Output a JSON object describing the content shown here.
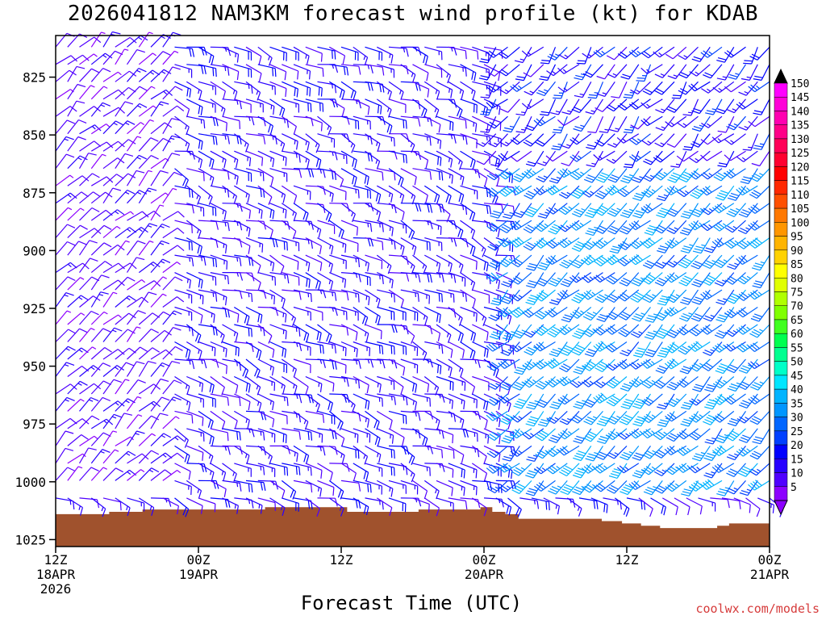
{
  "chart_data": {
    "type": "wind-barb-profile",
    "title": "2026041812 NAM3KM forecast wind profile (kt) for KDAB",
    "xlabel": "Forecast Time (UTC)",
    "ylabel": "",
    "credit": "coolwx.com/models",
    "x_range_hours": [
      0,
      60
    ],
    "x_ticks": [
      {
        "hour": 0,
        "line1": "12Z",
        "line2": "18APR",
        "line3": "2026"
      },
      {
        "hour": 12,
        "line1": "00Z",
        "line2": "19APR",
        "line3": ""
      },
      {
        "hour": 24,
        "line1": "12Z",
        "line2": "",
        "line3": ""
      },
      {
        "hour": 36,
        "line1": "00Z",
        "line2": "20APR",
        "line3": ""
      },
      {
        "hour": 48,
        "line1": "12Z",
        "line2": "",
        "line3": ""
      },
      {
        "hour": 60,
        "line1": "00Z",
        "line2": "21APR",
        "line3": ""
      }
    ],
    "y_range_hPa": [
      807,
      1028
    ],
    "y_ticks": [
      "825",
      "850",
      "875",
      "900",
      "925",
      "950",
      "975",
      "1000",
      "1025"
    ],
    "y_tick_values": [
      825,
      850,
      875,
      900,
      925,
      950,
      975,
      1000,
      1025
    ],
    "colorbar": {
      "labels": [
        "150",
        "145",
        "140",
        "135",
        "130",
        "125",
        "120",
        "115",
        "110",
        "105",
        "100",
        "95",
        "90",
        "85",
        "80",
        "75",
        "70",
        "65",
        "60",
        "55",
        "50",
        "45",
        "40",
        "35",
        "30",
        "25",
        "20",
        "15",
        "10",
        "5"
      ],
      "colors": [
        "#ff00ff",
        "#ff00d8",
        "#ff00b0",
        "#ff0088",
        "#ff0058",
        "#ff0030",
        "#ff0000",
        "#ff2800",
        "#ff5000",
        "#ff7800",
        "#ff9600",
        "#ffb400",
        "#ffd200",
        "#ffff00",
        "#e0ff00",
        "#b0ff00",
        "#80ff00",
        "#40ff20",
        "#00ff50",
        "#00ff90",
        "#00ffc8",
        "#00e6ff",
        "#00b4ff",
        "#0096ff",
        "#0066ff",
        "#0040ff",
        "#0000ff",
        "#2800ff",
        "#5000ff",
        "#8c00ff"
      ],
      "top_cap_color": "#000000",
      "bottom_cap_color": "#8c00ff"
    },
    "terrain_color": "#a0522d",
    "terrain_surface_hPa": [
      {
        "hour": 0,
        "p": 1014
      },
      {
        "hour": 4.5,
        "p": 1013
      },
      {
        "hour": 7.3,
        "p": 1012
      },
      {
        "hour": 17.6,
        "p": 1011
      },
      {
        "hour": 24.5,
        "p": 1013
      },
      {
        "hour": 30.5,
        "p": 1012
      },
      {
        "hour": 35.7,
        "p": 1011
      },
      {
        "hour": 36.7,
        "p": 1013
      },
      {
        "hour": 37.8,
        "p": 1014
      },
      {
        "hour": 38.9,
        "p": 1016
      },
      {
        "hour": 45.9,
        "p": 1017
      },
      {
        "hour": 47.6,
        "p": 1018
      },
      {
        "hour": 49.2,
        "p": 1019
      },
      {
        "hour": 50.8,
        "p": 1020
      },
      {
        "hour": 55.6,
        "p": 1019
      },
      {
        "hour": 56.6,
        "p": 1018
      },
      {
        "hour": 60,
        "p": 1018
      }
    ],
    "wind_regimes": [
      {
        "name": "light-northeasterly-early",
        "hours": [
          0,
          9
        ],
        "levels": [
          825,
          1000
        ],
        "speed_kt": [
          5,
          15
        ],
        "dir_deg": [
          30,
          60
        ]
      },
      {
        "name": "easterly-midperiod",
        "hours": [
          9,
          37
        ],
        "levels": [
          825,
          1000
        ],
        "speed_kt": [
          10,
          20
        ],
        "dir_deg": [
          90,
          130
        ]
      },
      {
        "name": "southwesterly-late",
        "hours": [
          37,
          60
        ],
        "levels": [
          860,
          1000
        ],
        "speed_kt": [
          25,
          40
        ],
        "dir_deg": [
          210,
          240
        ]
      },
      {
        "name": "southwesterly-upper-late",
        "hours": [
          37,
          60
        ],
        "levels": [
          807,
          860
        ],
        "speed_kt": [
          10,
          25
        ],
        "dir_deg": [
          200,
          240
        ]
      }
    ]
  }
}
